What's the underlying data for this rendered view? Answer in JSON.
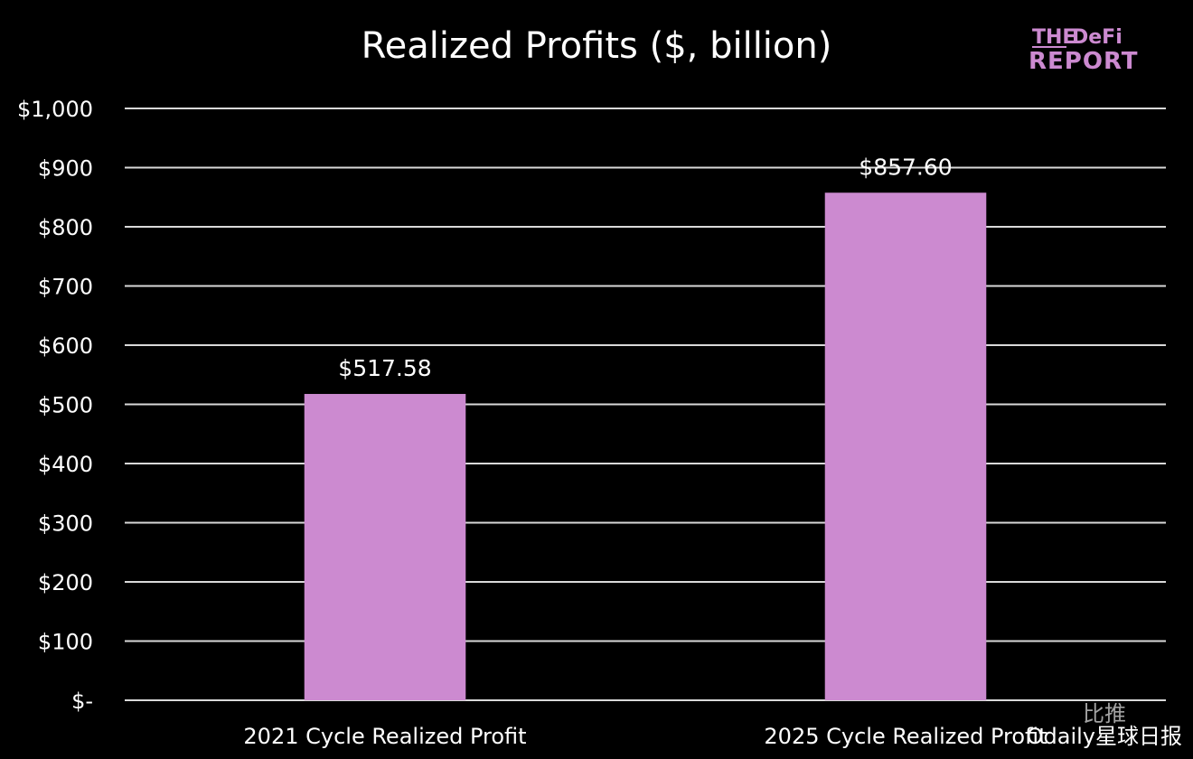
{
  "logo": {
    "line1_small": "THE",
    "line1_big": "DeFi",
    "line2": "REPORT"
  },
  "watermark": {
    "text": "Odaily星球日报",
    "badge": "比推"
  },
  "colors": {
    "background": "#000000",
    "bar": "#cc8ad0",
    "grid": "#d9d9d9",
    "text": "#ffffff"
  },
  "chart_data": {
    "type": "bar",
    "title": "Realized Profits ($, billion)",
    "categories": [
      "2021 Cycle Realized Profit",
      "2025 Cycle Realized Profit"
    ],
    "values": [
      517.58,
      857.6
    ],
    "data_labels": [
      "$517.58",
      "$857.60"
    ],
    "ylim": [
      0,
      1000
    ],
    "yticks": [
      0,
      100,
      200,
      300,
      400,
      500,
      600,
      700,
      800,
      900,
      1000
    ],
    "ytick_labels": [
      "$-",
      "$100",
      "$200",
      "$300",
      "$400",
      "$500",
      "$600",
      "$700",
      "$800",
      "$900",
      "$1,000"
    ],
    "grid": true,
    "legend": "none"
  }
}
